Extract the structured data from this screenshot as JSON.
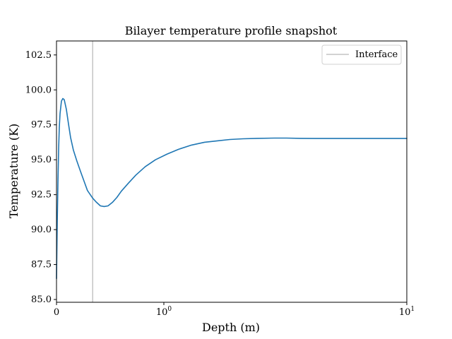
{
  "chart_data": {
    "type": "line",
    "title": "Bilayer temperature profile snapshot",
    "xlabel": "Depth (m)",
    "ylabel": "Temperature (K)",
    "xscale": "symlog",
    "xlim": [
      0,
      10
    ],
    "ylim": [
      84.8,
      103.5
    ],
    "xticks": [
      {
        "value": 0,
        "label": "0"
      },
      {
        "value": 1,
        "label": "10",
        "exp": "0"
      },
      {
        "value": 10,
        "label": "10",
        "exp": "1"
      }
    ],
    "yticks": [
      {
        "value": 85.0,
        "label": "85.0"
      },
      {
        "value": 87.5,
        "label": "87.5"
      },
      {
        "value": 90.0,
        "label": "90.0"
      },
      {
        "value": 92.5,
        "label": "92.5"
      },
      {
        "value": 95.0,
        "label": "95.0"
      },
      {
        "value": 97.5,
        "label": "97.5"
      },
      {
        "value": 100.0,
        "label": "100.0"
      },
      {
        "value": 102.5,
        "label": "102.5"
      }
    ],
    "grid": false,
    "legend": {
      "position": "top-right",
      "entries": [
        "Interface"
      ]
    },
    "interface": {
      "name": "Interface",
      "x": 0.337,
      "color": "#c4c4c4"
    },
    "series": [
      {
        "color": "#1f77b4",
        "x": [
          0.0,
          0.007,
          0.014,
          0.02,
          0.026,
          0.033,
          0.046,
          0.059,
          0.072,
          0.092,
          0.111,
          0.131,
          0.157,
          0.19,
          0.222,
          0.255,
          0.288,
          0.337,
          0.373,
          0.409,
          0.444,
          0.48,
          0.521,
          0.562,
          0.604,
          0.667,
          0.739,
          0.826,
          0.922,
          1.03,
          1.15,
          1.3,
          1.47,
          1.66,
          1.87,
          2.12,
          2.43,
          2.85,
          3.2,
          3.65,
          4.2,
          5.0,
          6.0,
          8.0,
          10.0
        ],
        "y": [
          86.5,
          90.5,
          93.6,
          95.8,
          97.3,
          98.3,
          99.2,
          99.38,
          99.3,
          98.6,
          97.6,
          96.6,
          95.7,
          94.9,
          94.2,
          93.5,
          92.8,
          92.25,
          91.95,
          91.7,
          91.65,
          91.7,
          91.95,
          92.3,
          92.75,
          93.3,
          93.9,
          94.5,
          95.0,
          95.4,
          95.75,
          96.05,
          96.25,
          96.35,
          96.45,
          96.5,
          96.53,
          96.55,
          96.55,
          96.53,
          96.52,
          96.52,
          96.52,
          96.52,
          96.52
        ]
      }
    ]
  }
}
